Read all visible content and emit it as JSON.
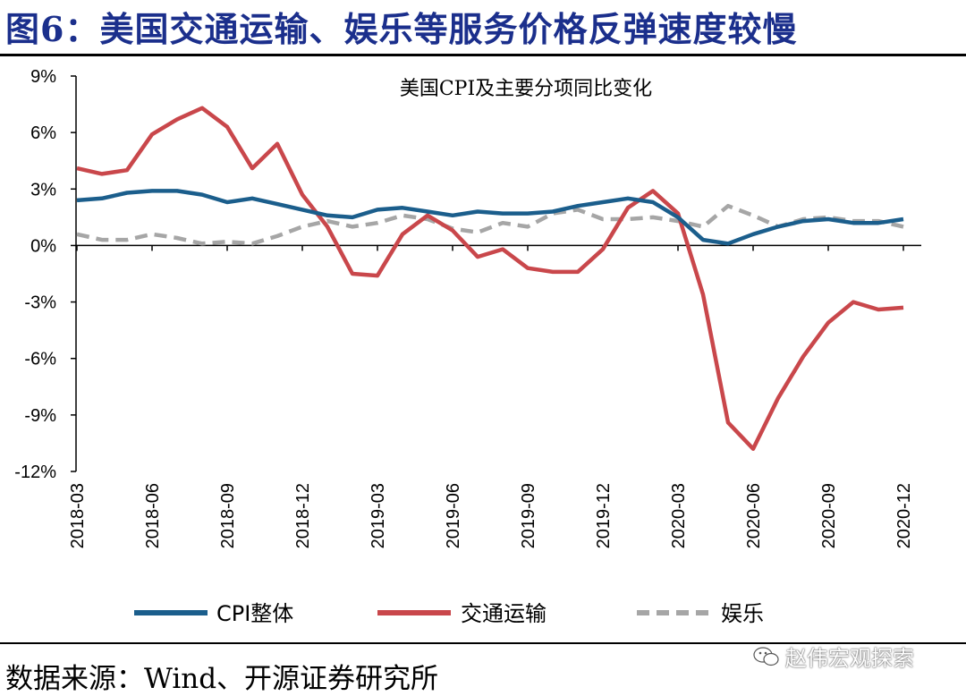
{
  "figure": {
    "title": "图6：美国交通运输、娱乐等服务价格反弹速度较慢",
    "source": "数据来源：Wind、开源证券研究所",
    "watermark": "赵伟宏观探索",
    "watermark_icon": "wechat-icon"
  },
  "chart_data": {
    "type": "line",
    "title": "美国CPI及主要分项同比变化",
    "xlabel": "",
    "ylabel": "",
    "ylim": [
      -12,
      9
    ],
    "yticks": [
      9,
      6,
      3,
      0,
      -3,
      -6,
      -9,
      -12
    ],
    "ytick_labels": [
      "9%",
      "6%",
      "3%",
      "0%",
      "-3%",
      "-6%",
      "-9%",
      "-12%"
    ],
    "x": [
      "2018-03",
      "2018-04",
      "2018-05",
      "2018-06",
      "2018-07",
      "2018-08",
      "2018-09",
      "2018-10",
      "2018-11",
      "2018-12",
      "2019-01",
      "2019-02",
      "2019-03",
      "2019-04",
      "2019-05",
      "2019-06",
      "2019-07",
      "2019-08",
      "2019-09",
      "2019-10",
      "2019-11",
      "2019-12",
      "2020-01",
      "2020-02",
      "2020-03",
      "2020-04",
      "2020-05",
      "2020-06",
      "2020-07",
      "2020-08",
      "2020-09",
      "2020-10",
      "2020-11",
      "2020-12"
    ],
    "xtick_labels": [
      "2018-03",
      "2018-06",
      "2018-09",
      "2018-12",
      "2019-03",
      "2019-06",
      "2019-09",
      "2019-12",
      "2020-03",
      "2020-06",
      "2020-09",
      "2020-12"
    ],
    "grid": false,
    "legend": "bottom",
    "series": [
      {
        "name": "CPI整体",
        "color": "#1b5e8c",
        "style": "solid",
        "values": [
          2.4,
          2.5,
          2.8,
          2.9,
          2.9,
          2.7,
          2.3,
          2.5,
          2.2,
          1.9,
          1.6,
          1.5,
          1.9,
          2.0,
          1.8,
          1.6,
          1.8,
          1.7,
          1.7,
          1.8,
          2.1,
          2.3,
          2.5,
          2.3,
          1.5,
          0.3,
          0.1,
          0.6,
          1.0,
          1.3,
          1.4,
          1.2,
          1.2,
          1.4
        ]
      },
      {
        "name": "交通运输",
        "color": "#c9474b",
        "style": "solid",
        "values": [
          4.1,
          3.8,
          4.0,
          5.9,
          6.7,
          7.3,
          6.3,
          4.1,
          5.4,
          2.7,
          1.0,
          -1.5,
          -1.6,
          0.6,
          1.6,
          0.8,
          -0.6,
          -0.2,
          -1.2,
          -1.4,
          -1.4,
          -0.2,
          2.0,
          2.9,
          1.7,
          -2.6,
          -9.4,
          -10.8,
          -8.1,
          -5.9,
          -4.1,
          -3.0,
          -3.4,
          -3.3
        ]
      },
      {
        "name": "娱乐",
        "color": "#a6a6a6",
        "style": "dashed",
        "values": [
          0.6,
          0.3,
          0.3,
          0.6,
          0.4,
          0.1,
          0.2,
          0.1,
          0.5,
          1.0,
          1.3,
          1.0,
          1.2,
          1.6,
          1.4,
          0.9,
          0.7,
          1.2,
          1.0,
          1.7,
          1.9,
          1.4,
          1.4,
          1.5,
          1.3,
          1.0,
          2.1,
          1.6,
          1.0,
          1.4,
          1.5,
          1.3,
          1.3,
          1.0
        ]
      }
    ]
  }
}
